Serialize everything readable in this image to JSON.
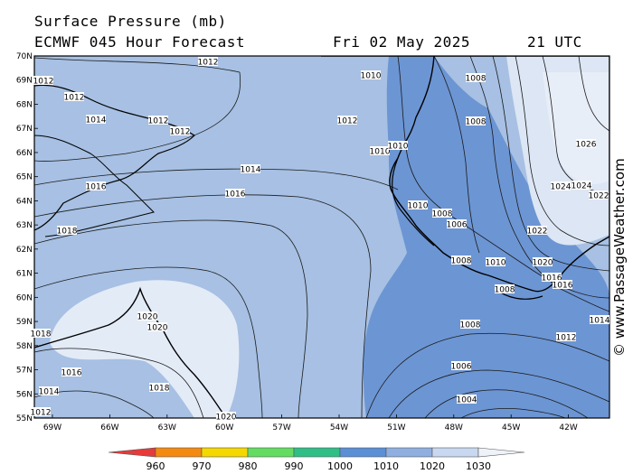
{
  "header": {
    "title": "Surface Pressure (mb)",
    "model": "ECMWF 045 Hour Forecast",
    "date": "Fri 02 May 2025",
    "time": "21 UTC"
  },
  "credit": "© www.PassageWeather.com",
  "map": {
    "lat_labels": [
      "70N",
      "69N",
      "68N",
      "67N",
      "66N",
      "65N",
      "64N",
      "63N",
      "62N",
      "61N",
      "60N",
      "59N",
      "58N",
      "57N",
      "56N",
      "55N"
    ],
    "lon_labels": [
      "69W",
      "66W",
      "63W",
      "60W",
      "57W",
      "54W",
      "51W",
      "48W",
      "45W",
      "42W"
    ],
    "isobar_labels": [
      {
        "text": "1012",
        "id": "a"
      },
      {
        "text": "1012",
        "id": "b"
      },
      {
        "text": "1012",
        "id": "c"
      },
      {
        "text": "1012",
        "id": "d"
      },
      {
        "text": "1012",
        "id": "e"
      },
      {
        "text": "1012",
        "id": "f"
      },
      {
        "text": "1014",
        "id": "g"
      },
      {
        "text": "1014",
        "id": "h"
      },
      {
        "text": "1016",
        "id": "i"
      },
      {
        "text": "1016",
        "id": "j"
      },
      {
        "text": "1018",
        "id": "k"
      },
      {
        "text": "1010",
        "id": "l"
      },
      {
        "text": "1012",
        "id": "m"
      },
      {
        "text": "1010",
        "id": "n"
      },
      {
        "text": "1010",
        "id": "o"
      },
      {
        "text": "1008",
        "id": "p"
      },
      {
        "text": "1008",
        "id": "q"
      },
      {
        "text": "1010",
        "id": "r"
      },
      {
        "text": "1008",
        "id": "s"
      },
      {
        "text": "1006",
        "id": "t"
      },
      {
        "text": "1008",
        "id": "u"
      },
      {
        "text": "1010",
        "id": "v"
      },
      {
        "text": "1008",
        "id": "w"
      },
      {
        "text": "1008",
        "id": "x"
      },
      {
        "text": "1006",
        "id": "y"
      },
      {
        "text": "1004",
        "id": "z"
      },
      {
        "text": "1026",
        "id": "aa"
      },
      {
        "text": "1024",
        "id": "ab"
      },
      {
        "text": "1024",
        "id": "ac"
      },
      {
        "text": "1022",
        "id": "ad"
      },
      {
        "text": "1022",
        "id": "ae"
      },
      {
        "text": "1020",
        "id": "af"
      },
      {
        "text": "1016",
        "id": "ag"
      },
      {
        "text": "1016",
        "id": "ah"
      },
      {
        "text": "1014",
        "id": "ai"
      },
      {
        "text": "1012",
        "id": "aj"
      },
      {
        "text": "1020",
        "id": "ak"
      },
      {
        "text": "1020",
        "id": "al"
      },
      {
        "text": "1016",
        "id": "am"
      },
      {
        "text": "1018",
        "id": "an"
      },
      {
        "text": "1014",
        "id": "ao"
      },
      {
        "text": "1020",
        "id": "ap"
      },
      {
        "text": "1012",
        "id": "aq"
      },
      {
        "text": "1018",
        "id": "ar"
      }
    ]
  },
  "legend": {
    "labels": [
      "960",
      "970",
      "980",
      "990",
      "1000",
      "1010",
      "1020",
      "1030"
    ],
    "colors": [
      "#e83a3a",
      "#f58a10",
      "#f5d800",
      "#62dd62",
      "#2fbf86",
      "#5b8fd6",
      "#8eafe0",
      "#c8d8f0",
      "#eef2f9"
    ]
  }
}
